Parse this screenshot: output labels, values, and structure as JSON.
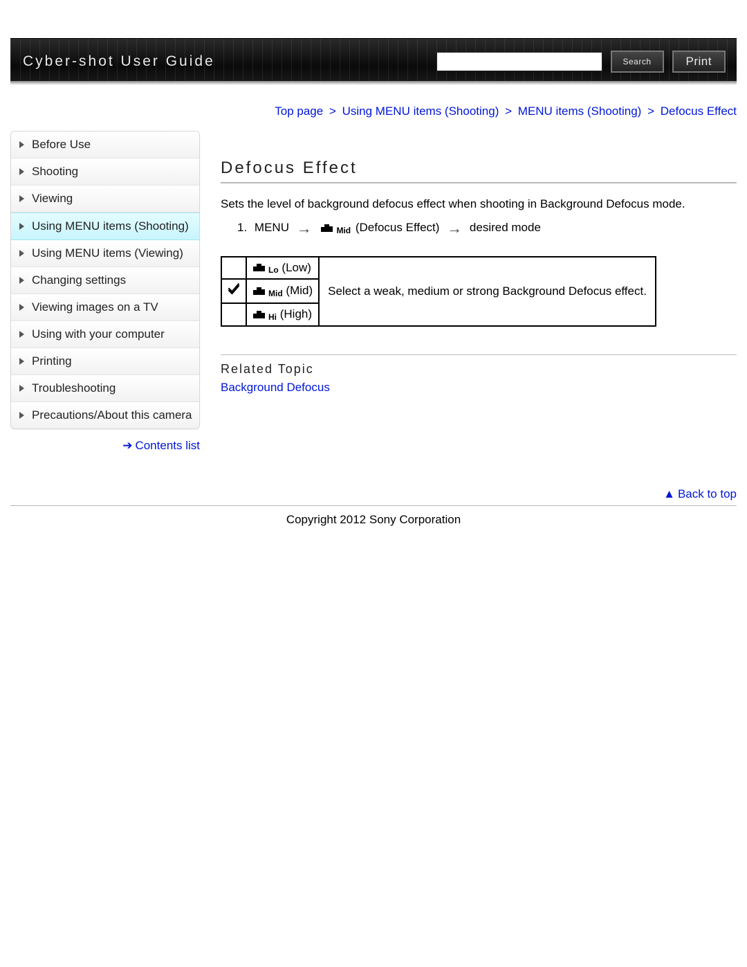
{
  "header": {
    "brand": "Cyber-shot User Guide",
    "search_placeholder": "",
    "search_btn": "Search",
    "print_btn": "Print"
  },
  "breadcrumb": {
    "items": [
      {
        "label": "Top page"
      },
      {
        "label": "Using MENU items (Shooting)"
      },
      {
        "label": "MENU items (Shooting)"
      }
    ],
    "current": "Defocus Effect",
    "sep": ">"
  },
  "sidebar": {
    "items": [
      {
        "label": "Before Use"
      },
      {
        "label": "Shooting"
      },
      {
        "label": "Viewing"
      },
      {
        "label": "Using MENU items (Shooting)",
        "active": true
      },
      {
        "label": "Using MENU items (Viewing)"
      },
      {
        "label": "Changing settings"
      },
      {
        "label": "Viewing images on a TV"
      },
      {
        "label": "Using with your computer"
      },
      {
        "label": "Printing"
      },
      {
        "label": "Troubleshooting"
      },
      {
        "label": "Precautions/About this camera"
      }
    ],
    "contents_link": "Contents list"
  },
  "main": {
    "title": "Defocus Effect",
    "lead": "Sets the level of background defocus effect when shooting in Background Defocus mode.",
    "step": {
      "num": "1.",
      "menu": "MENU",
      "mid_icon_sub": "Mid",
      "effect_label": "(Defocus Effect)",
      "tail": "desired mode"
    },
    "table": {
      "rows": [
        {
          "sub": "Lo",
          "label": "(Low)",
          "checked": false
        },
        {
          "sub": "Mid",
          "label": "(Mid)",
          "checked": true
        },
        {
          "sub": "Hi",
          "label": "(High)",
          "checked": false
        }
      ],
      "desc": "Select a weak, medium or strong Background Defocus effect."
    },
    "related_heading": "Related Topic",
    "related_link": "Background Defocus"
  },
  "footer": {
    "back_to_top": "Back to top",
    "copyright": "Copyright 2012 Sony Corporation"
  },
  "colors": {
    "link": "#0016d6",
    "rule": "#b8b8b8"
  }
}
